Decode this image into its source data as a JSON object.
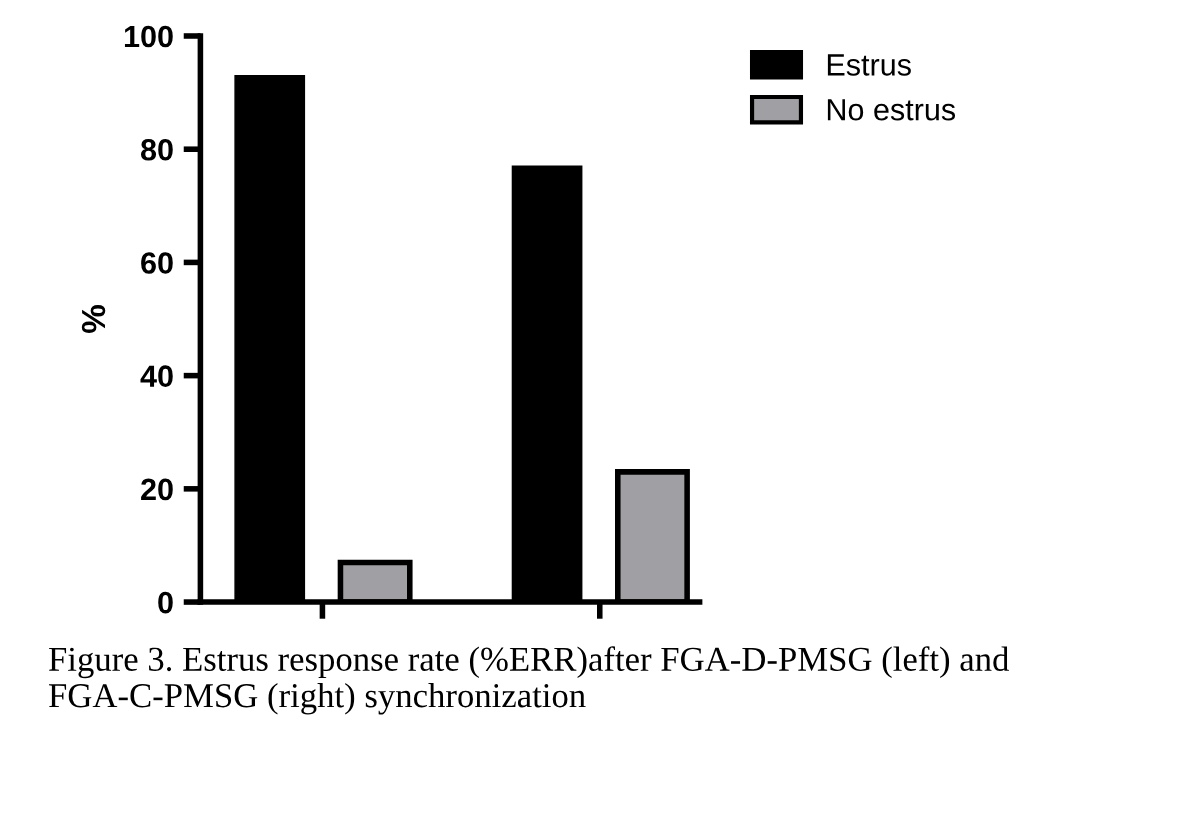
{
  "chart_data": {
    "type": "bar",
    "ylabel": "%",
    "categories": [
      null,
      null
    ],
    "series": [
      {
        "name": "Estrus",
        "color": "#000000",
        "values": [
          93,
          77
        ]
      },
      {
        "name": "No estrus",
        "color": "#a0a0a4",
        "values": [
          7,
          23
        ]
      }
    ],
    "ylim": [
      0,
      100
    ],
    "yticks": [
      0,
      20,
      40,
      60,
      80,
      100
    ],
    "grid": false,
    "legend": "top right",
    "annotations": [
      "Figure 3. Estrus response rate (%ERR)after FGA-D-PMSG (left) and FGA-C-PMSG (right) synchronization"
    ]
  }
}
